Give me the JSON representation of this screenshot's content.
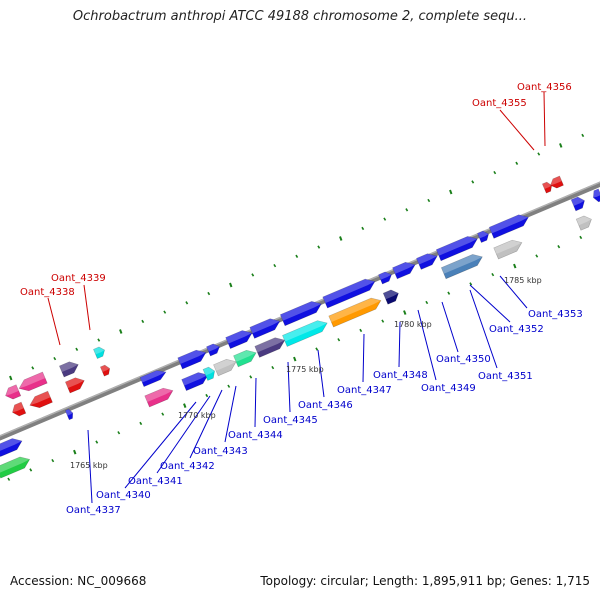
{
  "title": "Ochrobactrum anthropi ATCC 49188 chromosome 2, complete sequ...",
  "footer": {
    "accession": "Accession: NC_009668",
    "summary": "Topology: circular; Length: 1,895,911 bp; Genes: 1,715"
  },
  "colors": {
    "backbone": "#808080",
    "tick": "#1a7f1a",
    "forward_gene": "#1010e0",
    "reverse_gene": "#e01010",
    "label_forward": "#0000cc",
    "label_reverse": "#cc0000"
  },
  "scale_labels": [
    "1765 kbp",
    "1770 kbp",
    "1775 kbp",
    "1780 kbp",
    "1785 kbp"
  ],
  "gene_labels": [
    {
      "text": "Oant_4356",
      "color": "#cc0000"
    },
    {
      "text": "Oant_4355",
      "color": "#cc0000"
    },
    {
      "text": "Oant_4339",
      "color": "#cc0000"
    },
    {
      "text": "Oant_4338",
      "color": "#cc0000"
    },
    {
      "text": "Oant_4353",
      "color": "#0000cc"
    },
    {
      "text": "Oant_4352",
      "color": "#0000cc"
    },
    {
      "text": "Oant_4351",
      "color": "#0000cc"
    },
    {
      "text": "Oant_4350",
      "color": "#0000cc"
    },
    {
      "text": "Oant_4349",
      "color": "#0000cc"
    },
    {
      "text": "Oant_4348",
      "color": "#0000cc"
    },
    {
      "text": "Oant_4347",
      "color": "#0000cc"
    },
    {
      "text": "Oant_4346",
      "color": "#0000cc"
    },
    {
      "text": "Oant_4345",
      "color": "#0000cc"
    },
    {
      "text": "Oant_4344",
      "color": "#0000cc"
    },
    {
      "text": "Oant_4343",
      "color": "#0000cc"
    },
    {
      "text": "Oant_4342",
      "color": "#0000cc"
    },
    {
      "text": "Oant_4341",
      "color": "#0000cc"
    },
    {
      "text": "Oant_4340",
      "color": "#0000cc"
    },
    {
      "text": "Oant_4337",
      "color": "#0000cc"
    }
  ]
}
